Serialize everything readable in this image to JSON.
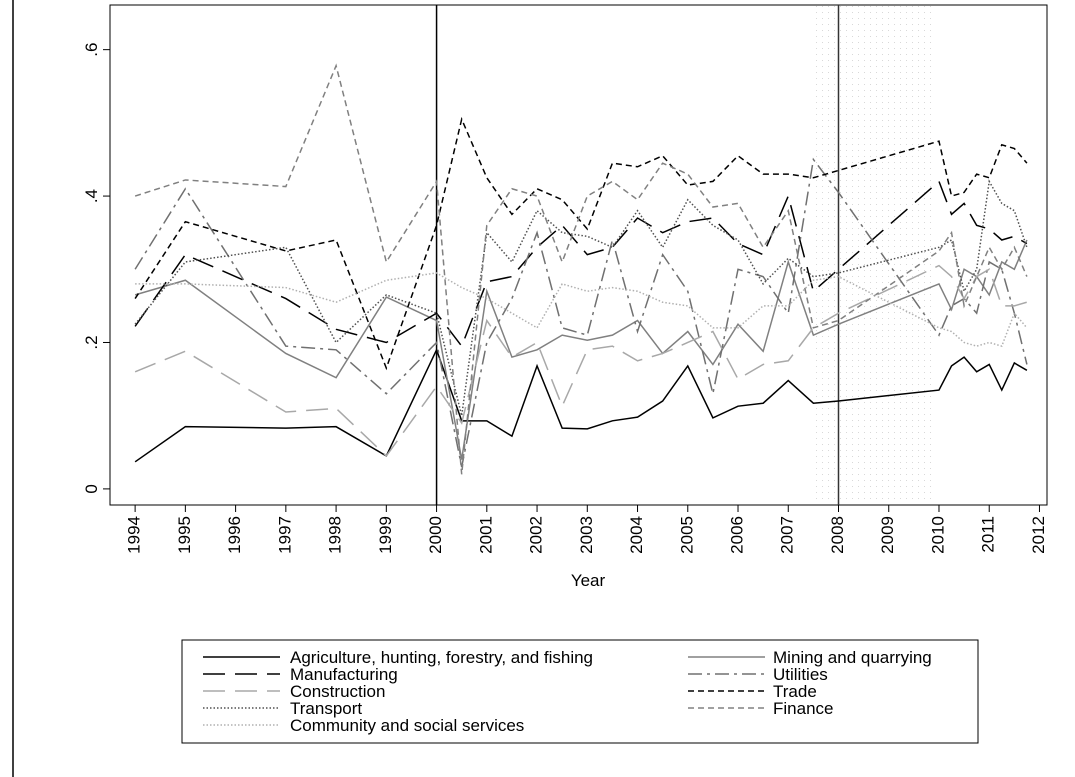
{
  "chart_data": {
    "type": "line",
    "xlabel": "Year",
    "x": [
      1994,
      1995,
      1997,
      1998,
      1999,
      2000,
      2000.5,
      2001,
      2001.5,
      2002,
      2002.5,
      2003,
      2003.5,
      2004,
      2004.5,
      2005,
      2005.5,
      2006,
      2006.5,
      2007,
      2007.5,
      2008,
      2010,
      2010.25,
      2010.5,
      2010.75,
      2011,
      2011.25,
      2011.5,
      2011.75
    ],
    "xlim": [
      1993.5,
      2012.15
    ],
    "xticks": [
      1994,
      1995,
      1996,
      1997,
      1998,
      1999,
      2000,
      2001,
      2002,
      2003,
      2004,
      2005,
      2006,
      2007,
      2008,
      2009,
      2010,
      2011,
      2012
    ],
    "ylim": [
      -0.022,
      0.661
    ],
    "yticks": [
      0,
      {
        "value": 0.2,
        "label": ".2"
      },
      {
        "value": 0.4,
        "label": ".4"
      },
      {
        "value": 0.6,
        "label": ".6"
      }
    ],
    "xlines": [
      2000,
      2008
    ],
    "series": [
      {
        "name": "Agriculture, hunting, forestry, and fishing",
        "color": "#000000",
        "dash": "solid",
        "values": [
          0.037,
          0.085,
          0.083,
          0.085,
          0.045,
          0.19,
          0.093,
          0.093,
          0.072,
          0.168,
          0.083,
          0.082,
          0.093,
          0.098,
          0.12,
          0.168,
          0.097,
          0.113,
          0.117,
          0.148,
          0.117,
          0.12,
          0.135,
          0.168,
          0.18,
          0.16,
          0.17,
          0.135,
          0.172,
          0.162
        ]
      },
      {
        "name": "Mining and quarrying",
        "color": "#808080",
        "dash": "solid",
        "values": [
          0.265,
          0.285,
          0.185,
          0.152,
          0.262,
          0.23,
          0.04,
          0.27,
          0.18,
          0.19,
          0.21,
          0.203,
          0.21,
          0.23,
          0.185,
          0.215,
          0.17,
          0.225,
          0.188,
          0.31,
          0.21,
          0.225,
          0.28,
          0.245,
          0.3,
          0.29,
          0.265,
          0.31,
          0.3,
          0.34
        ]
      },
      {
        "name": "Manufacturing",
        "color": "#000000",
        "dash": "long-dash",
        "values": [
          0.222,
          0.32,
          0.26,
          0.218,
          0.2,
          0.24,
          0.195,
          0.283,
          0.29,
          0.33,
          0.36,
          0.32,
          0.33,
          0.37,
          0.35,
          0.365,
          0.37,
          0.335,
          0.32,
          0.4,
          0.27,
          0.3,
          0.42,
          0.375,
          0.39,
          0.36,
          0.355,
          0.34,
          0.345,
          0.335
        ]
      },
      {
        "name": "Utilities",
        "color": "#707070",
        "dash": "dash-dot",
        "values": [
          0.3,
          0.41,
          0.195,
          0.19,
          0.13,
          0.2,
          0.03,
          0.2,
          0.26,
          0.35,
          0.22,
          0.21,
          0.34,
          0.215,
          0.32,
          0.27,
          0.13,
          0.3,
          0.29,
          0.24,
          0.45,
          0.405,
          0.21,
          0.25,
          0.26,
          0.24,
          0.31,
          0.3,
          0.24,
          0.17
        ]
      },
      {
        "name": "Construction",
        "color": "#a8a8a8",
        "dash": "long-dash",
        "values": [
          0.16,
          0.188,
          0.105,
          0.11,
          0.045,
          0.14,
          0.09,
          0.23,
          0.18,
          0.2,
          0.113,
          0.19,
          0.195,
          0.175,
          0.185,
          0.2,
          0.215,
          0.15,
          0.17,
          0.175,
          0.22,
          0.24,
          0.305,
          0.29,
          0.26,
          0.29,
          0.3,
          0.25,
          0.25,
          0.255
        ]
      },
      {
        "name": "Trade",
        "color": "#000000",
        "dash": "short-dash",
        "values": [
          0.26,
          0.365,
          0.325,
          0.34,
          0.165,
          0.36,
          0.505,
          0.425,
          0.375,
          0.41,
          0.395,
          0.355,
          0.445,
          0.44,
          0.455,
          0.415,
          0.42,
          0.455,
          0.43,
          0.43,
          0.425,
          0.435,
          0.475,
          0.4,
          0.405,
          0.43,
          0.425,
          0.47,
          0.465,
          0.445
        ]
      },
      {
        "name": "Transport",
        "color": "#505050",
        "dash": "dot",
        "values": [
          0.225,
          0.31,
          0.33,
          0.2,
          0.265,
          0.24,
          0.1,
          0.35,
          0.31,
          0.38,
          0.35,
          0.345,
          0.33,
          0.38,
          0.33,
          0.395,
          0.36,
          0.34,
          0.28,
          0.315,
          0.29,
          0.295,
          0.33,
          0.34,
          0.27,
          0.3,
          0.42,
          0.39,
          0.38,
          0.33
        ]
      },
      {
        "name": "Finance",
        "color": "#808080",
        "dash": "short-dash",
        "values": [
          0.4,
          0.422,
          0.413,
          0.578,
          0.31,
          0.42,
          0.02,
          0.36,
          0.41,
          0.4,
          0.31,
          0.4,
          0.42,
          0.395,
          0.445,
          0.43,
          0.385,
          0.39,
          0.33,
          0.38,
          0.22,
          0.23,
          0.325,
          0.35,
          0.25,
          0.29,
          0.33,
          0.3,
          0.33,
          0.29
        ]
      },
      {
        "name": "Community and social services",
        "color": "#b0b0b0",
        "dash": "dot",
        "values": [
          0.28,
          0.28,
          0.275,
          0.255,
          0.285,
          0.295,
          0.275,
          0.26,
          0.24,
          0.22,
          0.28,
          0.27,
          0.275,
          0.27,
          0.255,
          0.25,
          0.22,
          0.22,
          0.25,
          0.25,
          0.285,
          0.29,
          0.22,
          0.215,
          0.2,
          0.195,
          0.2,
          0.195,
          0.24,
          0.22
        ]
      }
    ]
  }
}
